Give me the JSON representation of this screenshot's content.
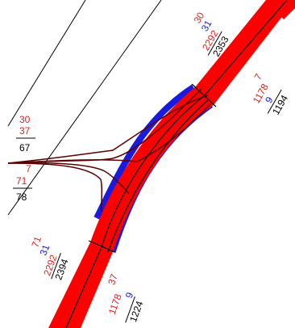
{
  "colors": {
    "flow_main": "#ff0000",
    "flow_secondary": "#1a1adf",
    "link_line": "#000000",
    "ramp_line": "#5a0000",
    "label_red": "#e02020",
    "label_blue": "#1a1adf",
    "label_black": "#000000"
  },
  "labels": {
    "top_right": {
      "red": "30",
      "blue": "31",
      "red2": "2292",
      "total": "2353"
    },
    "mid_right": {
      "red": "7",
      "red2": "1178",
      "blue": "9",
      "total": "1194"
    },
    "left_upper": {
      "red": "30",
      "red2": "37",
      "total": "67"
    },
    "left_lower": {
      "red": "7",
      "red2": "71",
      "total": "78"
    },
    "bottom_left": {
      "red": "71",
      "blue": "31",
      "red2": "2292",
      "total": "2394"
    },
    "bottom_mid": {
      "red": "37",
      "red2": "1178",
      "blue": "9",
      "total": "1224"
    }
  }
}
